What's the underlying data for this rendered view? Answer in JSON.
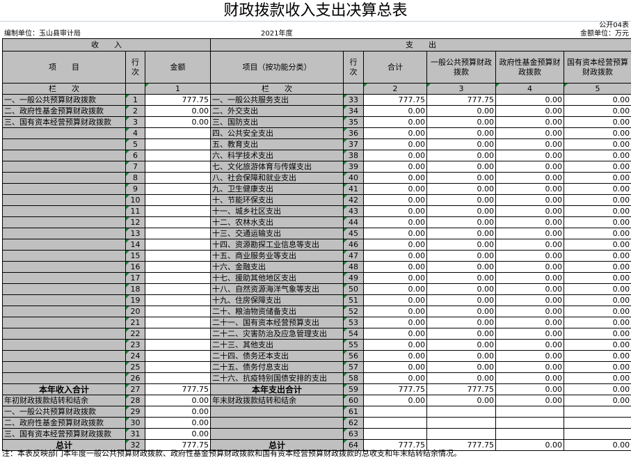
{
  "title": "财政拨款收入支出决算总表",
  "form_no": "公开04表",
  "unit_label": "编制单位：玉山县审计局",
  "year": "2021年度",
  "money_unit": "金额单位：万元",
  "headers": {
    "income": "收　　入",
    "expense": "支　　出",
    "item": "项　　目",
    "line": "行\n次",
    "amount": "金额",
    "func_item": "项目（按功能分类）",
    "total": "合计",
    "general": "一般公共预算财政拨款",
    "fund": "政府性基金预算财政拨款",
    "capital": "国有资本经营预算财政拨款",
    "col_order": "栏　　次",
    "col_nums": [
      "1",
      "2",
      "3",
      "4",
      "5"
    ]
  },
  "rows": [
    {
      "in_label": "一、一般公共预算财政拨款",
      "in_line": "1",
      "in_amt": "777.75",
      "ex_label": "一、一般公共服务支出",
      "ex_line": "33",
      "ex": [
        "777.75",
        "777.75",
        "0.00",
        "0.00"
      ]
    },
    {
      "in_label": "二、政府性基金预算财政拨款",
      "in_line": "2",
      "in_amt": "0.00",
      "ex_label": "二、外交支出",
      "ex_line": "34",
      "ex": [
        "0.00",
        "0.00",
        "0.00",
        "0.00"
      ]
    },
    {
      "in_label": "三、国有资本经营预算财政拨款",
      "in_line": "3",
      "in_amt": "0.00",
      "ex_label": "三、国防支出",
      "ex_line": "35",
      "ex": [
        "0.00",
        "0.00",
        "0.00",
        "0.00"
      ]
    },
    {
      "in_label": "",
      "in_line": "4",
      "in_amt": "",
      "ex_label": "四、公共安全支出",
      "ex_line": "36",
      "ex": [
        "0.00",
        "0.00",
        "0.00",
        "0.00"
      ]
    },
    {
      "in_label": "",
      "in_line": "5",
      "in_amt": "",
      "ex_label": "五、教育支出",
      "ex_line": "37",
      "ex": [
        "0.00",
        "0.00",
        "0.00",
        "0.00"
      ]
    },
    {
      "in_label": "",
      "in_line": "6",
      "in_amt": "",
      "ex_label": "六、科学技术支出",
      "ex_line": "38",
      "ex": [
        "0.00",
        "0.00",
        "0.00",
        "0.00"
      ]
    },
    {
      "in_label": "",
      "in_line": "7",
      "in_amt": "",
      "ex_label": "七、文化旅游体育与传媒支出",
      "ex_line": "39",
      "ex": [
        "0.00",
        "0.00",
        "0.00",
        "0.00"
      ]
    },
    {
      "in_label": "",
      "in_line": "8",
      "in_amt": "",
      "ex_label": "八、社会保障和就业支出",
      "ex_line": "40",
      "ex": [
        "0.00",
        "0.00",
        "0.00",
        "0.00"
      ]
    },
    {
      "in_label": "",
      "in_line": "9",
      "in_amt": "",
      "ex_label": "九、卫生健康支出",
      "ex_line": "41",
      "ex": [
        "0.00",
        "0.00",
        "0.00",
        "0.00"
      ]
    },
    {
      "in_label": "",
      "in_line": "10",
      "in_amt": "",
      "ex_label": "十、节能环保支出",
      "ex_line": "42",
      "ex": [
        "0.00",
        "0.00",
        "0.00",
        "0.00"
      ]
    },
    {
      "in_label": "",
      "in_line": "11",
      "in_amt": "",
      "ex_label": "十一、城乡社区支出",
      "ex_line": "43",
      "ex": [
        "0.00",
        "0.00",
        "0.00",
        "0.00"
      ]
    },
    {
      "in_label": "",
      "in_line": "12",
      "in_amt": "",
      "ex_label": "十二、农林水支出",
      "ex_line": "44",
      "ex": [
        "0.00",
        "0.00",
        "0.00",
        "0.00"
      ]
    },
    {
      "in_label": "",
      "in_line": "13",
      "in_amt": "",
      "ex_label": "十三、交通运输支出",
      "ex_line": "45",
      "ex": [
        "0.00",
        "0.00",
        "0.00",
        "0.00"
      ]
    },
    {
      "in_label": "",
      "in_line": "14",
      "in_amt": "",
      "ex_label": "十四、资源勘探工业信息等支出",
      "ex_line": "46",
      "ex": [
        "0.00",
        "0.00",
        "0.00",
        "0.00"
      ]
    },
    {
      "in_label": "",
      "in_line": "15",
      "in_amt": "",
      "ex_label": "十五、商业服务业等支出",
      "ex_line": "47",
      "ex": [
        "0.00",
        "0.00",
        "0.00",
        "0.00"
      ]
    },
    {
      "in_label": "",
      "in_line": "16",
      "in_amt": "",
      "ex_label": "十六、金融支出",
      "ex_line": "48",
      "ex": [
        "0.00",
        "0.00",
        "0.00",
        "0.00"
      ]
    },
    {
      "in_label": "",
      "in_line": "17",
      "in_amt": "",
      "ex_label": "十七、援助其他地区支出",
      "ex_line": "49",
      "ex": [
        "0.00",
        "0.00",
        "0.00",
        "0.00"
      ]
    },
    {
      "in_label": "",
      "in_line": "18",
      "in_amt": "",
      "ex_label": "十八、自然资源海洋气象等支出",
      "ex_line": "50",
      "ex": [
        "0.00",
        "0.00",
        "0.00",
        "0.00"
      ]
    },
    {
      "in_label": "",
      "in_line": "19",
      "in_amt": "",
      "ex_label": "十九、住房保障支出",
      "ex_line": "51",
      "ex": [
        "0.00",
        "0.00",
        "0.00",
        "0.00"
      ]
    },
    {
      "in_label": "",
      "in_line": "20",
      "in_amt": "",
      "ex_label": "二十、粮油物资储备支出",
      "ex_line": "52",
      "ex": [
        "0.00",
        "0.00",
        "0.00",
        "0.00"
      ]
    },
    {
      "in_label": "",
      "in_line": "21",
      "in_amt": "",
      "ex_label": "二十一、国有资本经营预算支出",
      "ex_line": "53",
      "ex": [
        "0.00",
        "0.00",
        "0.00",
        "0.00"
      ]
    },
    {
      "in_label": "",
      "in_line": "22",
      "in_amt": "",
      "ex_label": "二十二、灾害防治及应急管理支出",
      "ex_line": "54",
      "ex": [
        "0.00",
        "0.00",
        "0.00",
        "0.00"
      ]
    },
    {
      "in_label": "",
      "in_line": "23",
      "in_amt": "",
      "ex_label": "二十三、其他支出",
      "ex_line": "55",
      "ex": [
        "0.00",
        "0.00",
        "0.00",
        "0.00"
      ]
    },
    {
      "in_label": "",
      "in_line": "24",
      "in_amt": "",
      "ex_label": "二十四、债务还本支出",
      "ex_line": "56",
      "ex": [
        "0.00",
        "0.00",
        "0.00",
        "0.00"
      ]
    },
    {
      "in_label": "",
      "in_line": "25",
      "in_amt": "",
      "ex_label": "二十五、债务付息支出",
      "ex_line": "57",
      "ex": [
        "0.00",
        "0.00",
        "0.00",
        "0.00"
      ]
    },
    {
      "in_label": "",
      "in_line": "26",
      "in_amt": "",
      "ex_label": "二十六、抗疫特别国债安排的支出",
      "ex_line": "58",
      "ex": [
        "0.00",
        "0.00",
        "0.00",
        "0.00"
      ]
    },
    {
      "in_label": "本年收入合计",
      "in_line": "27",
      "in_amt": "777.75",
      "ex_label": "本年支出合计",
      "ex_line": "59",
      "ex": [
        "777.75",
        "777.75",
        "0.00",
        "0.00"
      ],
      "bold": true
    },
    {
      "in_label": "年初财政拨款结转和结余",
      "in_line": "28",
      "in_amt": "0.00",
      "ex_label": "年末财政拨款结转和结余",
      "ex_line": "60",
      "ex": [
        "0.00",
        "0.00",
        "0.00",
        "0.00"
      ]
    },
    {
      "in_label": "一、一般公共预算财政拨款",
      "in_line": "29",
      "in_amt": "0.00",
      "ex_label": "",
      "ex_line": "61",
      "ex": [
        "",
        "",
        "",
        ""
      ]
    },
    {
      "in_label": "二、政府性基金预算财政拨款",
      "in_line": "30",
      "in_amt": "0.00",
      "ex_label": "",
      "ex_line": "62",
      "ex": [
        "",
        "",
        "",
        ""
      ]
    },
    {
      "in_label": "三、国有资本经营预算财政拨款",
      "in_line": "31",
      "in_amt": "0.00",
      "ex_label": "",
      "ex_line": "63",
      "ex": [
        "",
        "",
        "",
        ""
      ]
    },
    {
      "in_label": "总计",
      "in_line": "32",
      "in_amt": "777.75",
      "ex_label": "总计",
      "ex_line": "64",
      "ex": [
        "777.75",
        "777.75",
        "0.00",
        "0.00"
      ],
      "bold": true
    }
  ],
  "note": "注：本表反映部门本年度一般公共预算财政拨款、政府性基金预算财政拨款和国有资本经营预算财政拨款的总收支和年末结转结余情况。"
}
